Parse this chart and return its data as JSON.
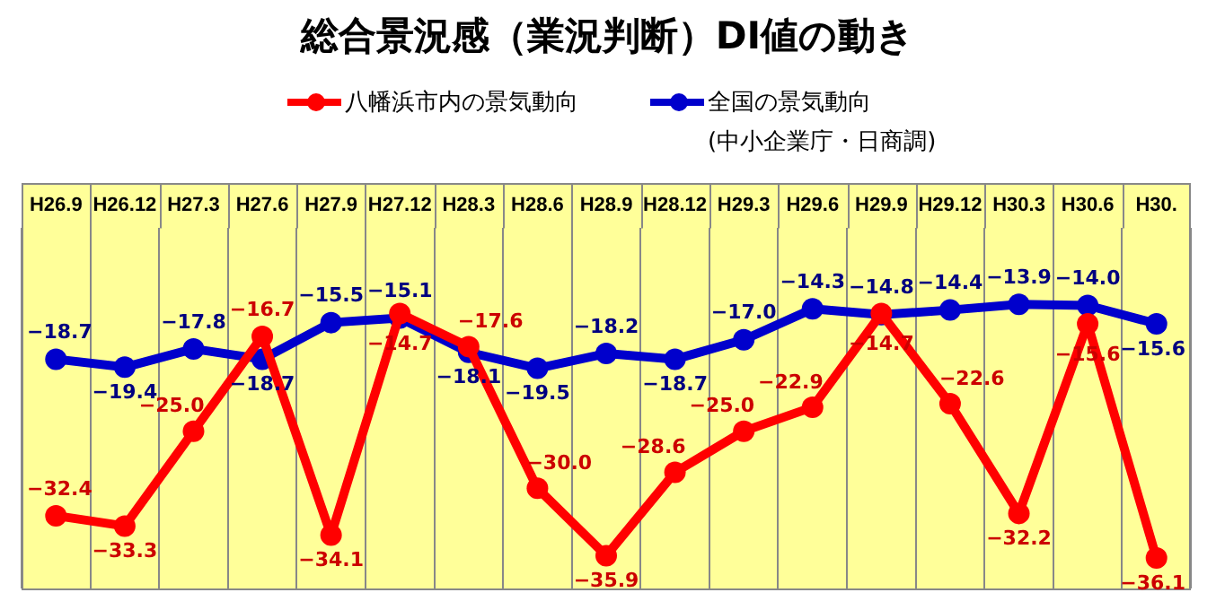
{
  "chart_data": {
    "type": "line",
    "title": "総合景況感（業況判断）DI値の動き",
    "categories": [
      "H26.9",
      "H26.12",
      "H27.3",
      "H27.6",
      "H27.9",
      "H27.12",
      "H28.3",
      "H28.6",
      "H28.9",
      "H28.12",
      "H29.3",
      "H29.6",
      "H29.9",
      "H29.12",
      "H30.3",
      "H30.6",
      "H30."
    ],
    "series": [
      {
        "name": "八幡浜市内の景気動向",
        "color": "#ff0000",
        "values": [
          -32.4,
          -33.3,
          -25.0,
          -16.7,
          -34.1,
          -14.7,
          -17.6,
          -30.0,
          -35.9,
          -28.6,
          -25.0,
          -22.9,
          -14.7,
          -22.6,
          -32.2,
          -15.6,
          -36.1
        ],
        "value_labels": [
          "−32.4",
          "−33.3",
          "−25.0",
          "−16.7",
          "−34.1",
          "−14.7",
          "−17.6",
          "−30.0",
          "−35.9",
          "−28.6",
          "−25.0",
          "−22.9",
          "−14.7",
          "−22.6",
          "−32.2",
          "−15.6",
          "−36.1"
        ]
      },
      {
        "name": "全国の景気動向",
        "color": "#0000cc",
        "values": [
          -18.7,
          -19.4,
          -17.8,
          -18.7,
          -15.5,
          -15.1,
          -18.1,
          -19.5,
          -18.2,
          -18.7,
          -17.0,
          -14.3,
          -14.8,
          -14.4,
          -13.9,
          -14.0,
          -15.6
        ],
        "value_labels": [
          "−18.7",
          "−19.4",
          "−17.8",
          "−18.7",
          "−15.5",
          "−15.1",
          "−18.1",
          "−19.5",
          "−18.2",
          "−18.7",
          "−17.0",
          "−14.3",
          "−14.8",
          "−14.4",
          "−13.9",
          "−14.0",
          "−15.6"
        ]
      }
    ],
    "annotations": [
      "(中小企業庁・日商調)"
    ],
    "grid": "x",
    "legend": "top",
    "marker": "circle",
    "line_style": "solid"
  }
}
